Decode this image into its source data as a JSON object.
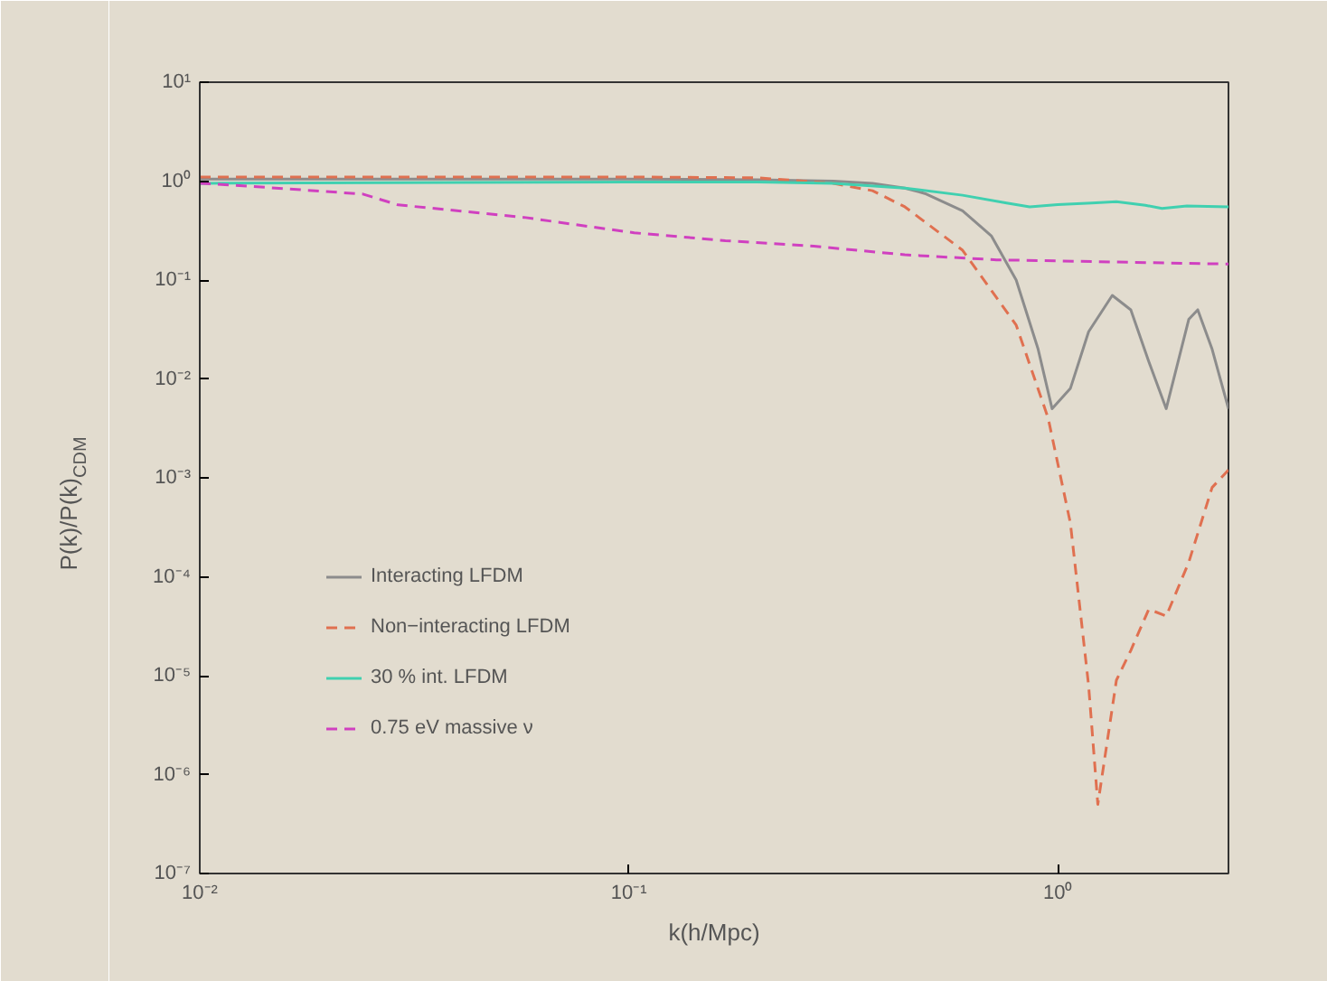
{
  "chart_data": {
    "type": "line",
    "xlabel": "k(h/Mpc)",
    "ylabel": "P(k)/P(k)$_{CDM}$",
    "log": "xy",
    "grid": false,
    "legend": "bottom left",
    "xlim": [
      0.01,
      2.5
    ],
    "ylim": [
      1e-07,
      10
    ],
    "xticks": [
      {
        "value": 0.01,
        "label": "10⁻²"
      },
      {
        "value": 0.1,
        "label": "10⁻¹"
      },
      {
        "value": 1,
        "label": "10⁰"
      }
    ],
    "yticks": [
      {
        "value": 1e-07,
        "label": "10⁻⁷"
      },
      {
        "value": 1e-06,
        "label": "10⁻⁶"
      },
      {
        "value": 1e-05,
        "label": "10⁻⁵"
      },
      {
        "value": 0.0001,
        "label": "10⁻⁴"
      },
      {
        "value": 0.001,
        "label": "10⁻³"
      },
      {
        "value": 0.01,
        "label": "10⁻²"
      },
      {
        "value": 0.1,
        "label": "10⁻¹"
      },
      {
        "value": 1,
        "label": "10⁰"
      },
      {
        "value": 10,
        "label": "10¹"
      }
    ],
    "series": [
      {
        "name": "Interacting LFDM",
        "color": "#8c8c8c",
        "line_style": "solid",
        "x": [
          0.01,
          0.05,
          0.1,
          0.2,
          0.3,
          0.37,
          0.44,
          0.49,
          0.6,
          0.7,
          0.8,
          0.9,
          0.97,
          1.07,
          1.18,
          1.34,
          1.48,
          1.63,
          1.79,
          2.02,
          2.12,
          2.29,
          2.5
        ],
        "values": [
          1.05,
          1.05,
          1.05,
          1.03,
          1.0,
          0.95,
          0.85,
          0.75,
          0.5,
          0.28,
          0.1,
          0.02,
          0.005,
          0.008,
          0.03,
          0.07,
          0.05,
          0.015,
          0.005,
          0.04,
          0.05,
          0.02,
          0.005
        ]
      },
      {
        "name": "Non−interacting LFDM",
        "color": "#e07050",
        "line_style": "dashed",
        "x": [
          0.01,
          0.1,
          0.2,
          0.3,
          0.37,
          0.44,
          0.6,
          0.8,
          0.95,
          1.07,
          1.18,
          1.24,
          1.37,
          1.48,
          1.63,
          1.79,
          2.02,
          2.29,
          2.5
        ],
        "values": [
          1.1,
          1.1,
          1.08,
          0.95,
          0.8,
          0.55,
          0.2,
          0.035,
          0.004,
          0.00035,
          8e-06,
          5e-07,
          9e-06,
          1.8e-05,
          4.7e-05,
          4e-05,
          0.00014,
          0.0008,
          0.0012
        ]
      },
      {
        "name": "30 % int. LFDM",
        "color": "#40d0b0",
        "line_style": "solid",
        "x": [
          0.01,
          0.1,
          0.2,
          0.3,
          0.44,
          0.6,
          0.76,
          0.86,
          1.0,
          1.2,
          1.37,
          1.6,
          1.75,
          2.0,
          2.5
        ],
        "values": [
          0.95,
          0.98,
          0.98,
          0.95,
          0.85,
          0.72,
          0.6,
          0.55,
          0.58,
          0.6,
          0.62,
          0.57,
          0.53,
          0.56,
          0.55
        ]
      },
      {
        "name": "0.75 eV massive ν",
        "color": "#d040c0",
        "line_style": "dashed",
        "x": [
          0.01,
          0.012,
          0.024,
          0.029,
          0.057,
          0.103,
          0.168,
          0.27,
          0.44,
          0.72,
          2.5
        ],
        "values": [
          0.95,
          0.91,
          0.74,
          0.575,
          0.43,
          0.3,
          0.25,
          0.22,
          0.18,
          0.16,
          0.145
        ]
      }
    ]
  }
}
